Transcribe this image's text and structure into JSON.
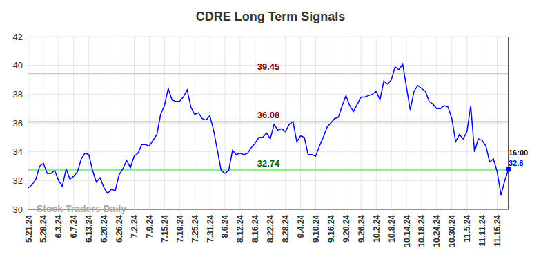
{
  "chart_data": {
    "type": "line",
    "title": "CDRE Long Term Signals",
    "watermark": "Stock Traders Daily",
    "end_time_label": "16:00",
    "categories": [
      "5.21.24",
      null,
      null,
      null,
      "5.28.24",
      null,
      null,
      null,
      "6.3.24",
      null,
      null,
      null,
      "6.7.24",
      null,
      null,
      null,
      "6.13.24",
      null,
      null,
      null,
      "6.20.24",
      null,
      null,
      null,
      "6.26.24",
      null,
      null,
      null,
      "7.2.24",
      null,
      null,
      null,
      "7.9.24",
      null,
      null,
      null,
      "7.15.24",
      null,
      null,
      null,
      "7.19.24",
      null,
      null,
      null,
      "7.25.24",
      null,
      null,
      null,
      "7.31.24",
      null,
      null,
      null,
      "8.6.24",
      null,
      null,
      null,
      "8.12.24",
      null,
      null,
      null,
      "8.16.24",
      null,
      null,
      null,
      "8.22.24",
      null,
      null,
      null,
      "8.28.24",
      null,
      null,
      null,
      "9.4.24",
      null,
      null,
      null,
      "9.10.24",
      null,
      null,
      null,
      "9.16.24",
      null,
      null,
      null,
      "9.20.24",
      null,
      null,
      null,
      "9.26.24",
      null,
      null,
      null,
      "10.2.24",
      null,
      null,
      null,
      "10.8.24",
      null,
      null,
      null,
      "10.14.24",
      null,
      null,
      null,
      "10.18.24",
      null,
      null,
      null,
      "10.24.24",
      null,
      null,
      null,
      "10.30.24",
      null,
      null,
      null,
      "11.5.24",
      null,
      null,
      null,
      "11.11.24",
      null,
      null,
      null,
      "11.15.24",
      null,
      null,
      null
    ],
    "values": [
      31.5,
      31.7,
      32.1,
      33.0,
      33.2,
      32.5,
      32.5,
      32.7,
      32.0,
      31.6,
      32.8,
      32.1,
      32.3,
      32.6,
      33.5,
      33.9,
      33.8,
      32.7,
      31.9,
      32.2,
      31.5,
      31.1,
      31.4,
      31.3,
      32.4,
      32.8,
      33.4,
      32.9,
      33.7,
      33.9,
      34.5,
      34.5,
      34.4,
      34.8,
      35.2,
      36.6,
      37.2,
      38.4,
      37.6,
      37.5,
      37.5,
      37.8,
      38.3,
      37.1,
      36.6,
      36.7,
      36.3,
      36.2,
      36.5,
      35.5,
      34.1,
      32.7,
      32.5,
      32.7,
      34.1,
      33.8,
      33.9,
      33.8,
      33.9,
      34.3,
      34.6,
      35.0,
      35.0,
      35.3,
      34.9,
      35.9,
      35.5,
      35.6,
      35.4,
      35.9,
      36.1,
      34.7,
      35.1,
      35.0,
      33.8,
      33.8,
      33.7,
      34.4,
      35.0,
      35.7,
      36.0,
      36.3,
      36.4,
      37.2,
      37.9,
      37.2,
      36.8,
      37.3,
      37.8,
      37.8,
      37.9,
      38.0,
      38.2,
      37.6,
      38.9,
      38.7,
      39.0,
      39.9,
      39.7,
      40.1,
      38.5,
      36.9,
      38.2,
      38.6,
      38.4,
      38.2,
      37.5,
      37.3,
      37.0,
      37.0,
      37.2,
      37.1,
      36.3,
      34.7,
      35.2,
      34.9,
      35.4,
      37.2,
      34.0,
      34.9,
      34.8,
      34.4,
      33.3,
      33.5,
      32.6,
      31.0,
      32.0,
      32.8
    ],
    "color": "#0000ff",
    "ylim": [
      30,
      42
    ],
    "yticks": [
      30,
      32,
      34,
      36,
      38,
      40,
      42
    ],
    "grid": true,
    "reference_lines": [
      {
        "value": 39.45,
        "label": "39.45",
        "color": "#ffb3b3",
        "label_color": "#8b0000"
      },
      {
        "value": 36.08,
        "label": "36.08",
        "color": "#ffb3b3",
        "label_color": "#8b0000"
      },
      {
        "value": 32.74,
        "label": "32.74",
        "color": "#90ee90",
        "label_color": "#006400"
      }
    ]
  }
}
